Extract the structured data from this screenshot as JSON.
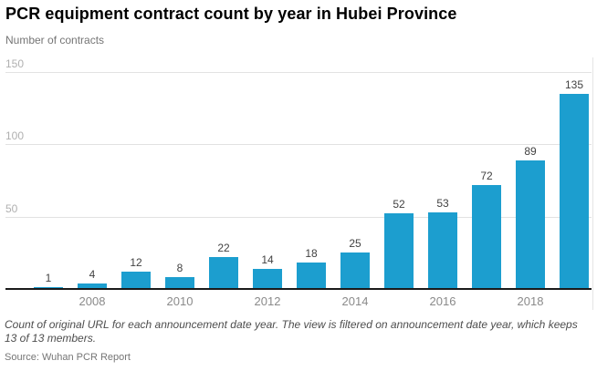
{
  "header": {
    "title": "PCR equipment contract count by year in Hubei Province",
    "subtitle": "Number of contracts"
  },
  "chart_data": {
    "type": "bar",
    "title": "PCR equipment contract count by year in Hubei Province",
    "ylabel": "Number of contracts",
    "xlabel": "",
    "categories": [
      "2007",
      "2008",
      "2009",
      "2010",
      "2011",
      "2012",
      "2013",
      "2014",
      "2015",
      "2016",
      "2017",
      "2018",
      "2019"
    ],
    "values": [
      1,
      4,
      12,
      8,
      22,
      14,
      18,
      25,
      52,
      53,
      72,
      89,
      135
    ],
    "ylim": [
      0,
      150
    ],
    "yticks": [
      50,
      100,
      150
    ],
    "x_tick_labels": [
      "2008",
      "2010",
      "2012",
      "2014",
      "2016",
      "2018"
    ],
    "grid": "horizontal",
    "bar_color": "#1c9ecf",
    "gridline_color": "#e2e2e2",
    "axis_line_color": "#1a1a1a",
    "value_label_color": "#424242",
    "x_tick_color": "#8a8a8a",
    "y_tick_color": "#b0b0b0"
  },
  "footer": {
    "caption": "Count of original URL for each announcement date year. The view is filtered on announcement date year, which keeps 13 of 13 members.",
    "source": "Source: Wuhan PCR Report"
  }
}
